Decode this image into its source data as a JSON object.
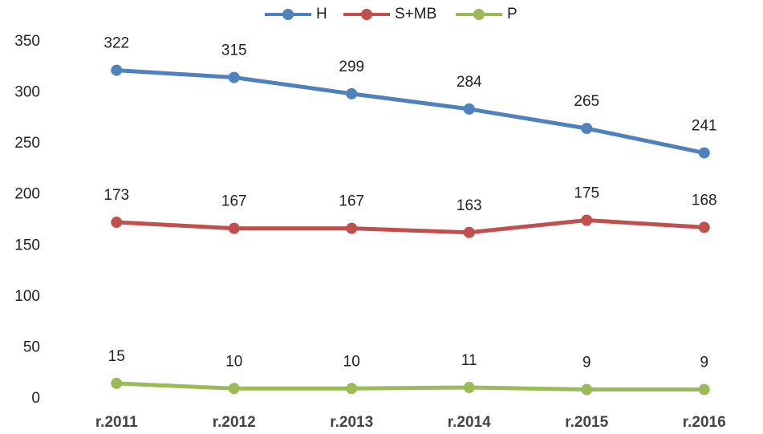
{
  "chart_data": {
    "type": "line",
    "categories": [
      "r.2011",
      "r.2012",
      "r.2013",
      "r.2014",
      "r.2015",
      "r.2016"
    ],
    "series": [
      {
        "name": "H",
        "color": "#4f81bd",
        "values": [
          322,
          315,
          299,
          284,
          265,
          241
        ]
      },
      {
        "name": "S+MB",
        "color": "#c0504d",
        "values": [
          173,
          167,
          167,
          163,
          175,
          168
        ]
      },
      {
        "name": "P",
        "color": "#9bbb59",
        "values": [
          15,
          10,
          10,
          11,
          9,
          9
        ]
      }
    ],
    "ylim": [
      0,
      350
    ],
    "yticks": [
      0,
      50,
      100,
      150,
      200,
      250,
      300,
      350
    ],
    "grid": false,
    "legend": "top"
  }
}
